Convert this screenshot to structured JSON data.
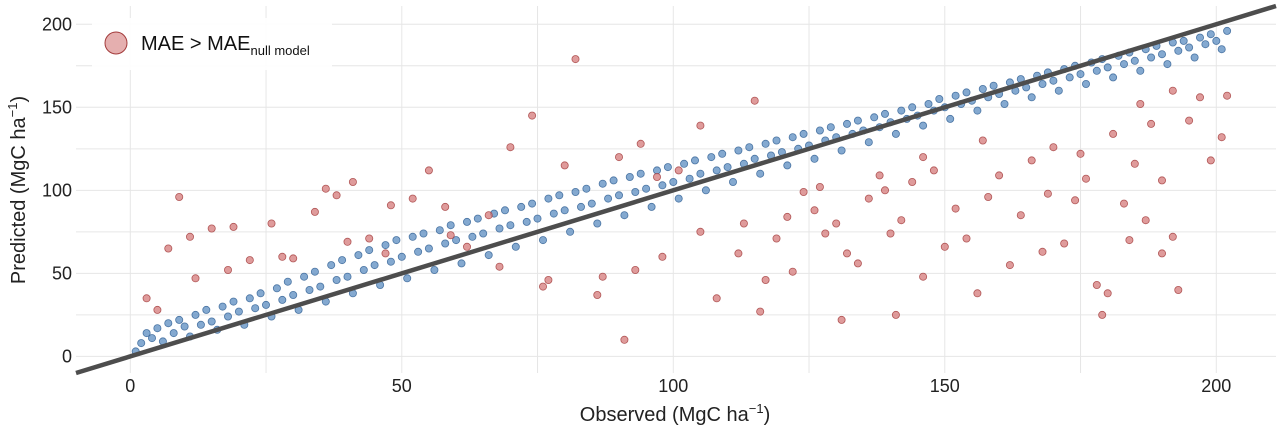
{
  "chart_data": {
    "type": "scatter",
    "title": "",
    "xlabel": "Observed (MgC ha",
    "xlabel_sup": "−1",
    "xlabel_end": ")",
    "ylabel": "Predicted (MgC ha",
    "ylabel_sup": "−1",
    "ylabel_end": ")",
    "xlim": [
      -10,
      211
    ],
    "ylim": [
      -10,
      211
    ],
    "x_ticks": [
      0,
      50,
      100,
      150,
      200
    ],
    "y_ticks": [
      0,
      50,
      100,
      150,
      200
    ],
    "grid": true,
    "legend": {
      "placement": "top-left",
      "label": "MAE > MAE",
      "label_sub": "null model"
    },
    "reference_line": {
      "slope": 1,
      "intercept": 0,
      "color": "#4d4d4d"
    },
    "series": [
      {
        "key": "within",
        "color": "#5b8cc0",
        "edge": "#2f5f93",
        "points": [
          [
            1,
            3
          ],
          [
            2,
            8
          ],
          [
            3,
            14
          ],
          [
            4,
            11
          ],
          [
            5,
            17
          ],
          [
            6,
            9
          ],
          [
            7,
            20
          ],
          [
            8,
            14
          ],
          [
            9,
            22
          ],
          [
            10,
            18
          ],
          [
            11,
            12
          ],
          [
            12,
            25
          ],
          [
            13,
            19
          ],
          [
            14,
            28
          ],
          [
            15,
            21
          ],
          [
            16,
            16
          ],
          [
            17,
            30
          ],
          [
            18,
            24
          ],
          [
            19,
            33
          ],
          [
            20,
            27
          ],
          [
            21,
            19
          ],
          [
            22,
            35
          ],
          [
            23,
            29
          ],
          [
            24,
            38
          ],
          [
            25,
            31
          ],
          [
            26,
            24
          ],
          [
            27,
            41
          ],
          [
            28,
            34
          ],
          [
            29,
            45
          ],
          [
            30,
            37
          ],
          [
            31,
            28
          ],
          [
            32,
            48
          ],
          [
            33,
            40
          ],
          [
            34,
            51
          ],
          [
            35,
            42
          ],
          [
            36,
            33
          ],
          [
            37,
            55
          ],
          [
            38,
            46
          ],
          [
            39,
            58
          ],
          [
            40,
            48
          ],
          [
            41,
            38
          ],
          [
            42,
            61
          ],
          [
            43,
            52
          ],
          [
            44,
            64
          ],
          [
            45,
            55
          ],
          [
            46,
            43
          ],
          [
            47,
            67
          ],
          [
            48,
            57
          ],
          [
            49,
            70
          ],
          [
            50,
            60
          ],
          [
            51,
            47
          ],
          [
            52,
            72
          ],
          [
            53,
            63
          ],
          [
            54,
            74
          ],
          [
            55,
            65
          ],
          [
            56,
            52
          ],
          [
            57,
            76
          ],
          [
            58,
            68
          ],
          [
            59,
            79
          ],
          [
            60,
            70
          ],
          [
            61,
            56
          ],
          [
            62,
            81
          ],
          [
            63,
            72
          ],
          [
            64,
            83
          ],
          [
            65,
            74
          ],
          [
            66,
            61
          ],
          [
            67,
            86
          ],
          [
            68,
            77
          ],
          [
            69,
            88
          ],
          [
            70,
            79
          ],
          [
            71,
            66
          ],
          [
            72,
            90
          ],
          [
            73,
            81
          ],
          [
            74,
            92
          ],
          [
            75,
            83
          ],
          [
            76,
            70
          ],
          [
            77,
            95
          ],
          [
            78,
            86
          ],
          [
            79,
            97
          ],
          [
            80,
            88
          ],
          [
            81,
            75
          ],
          [
            82,
            99
          ],
          [
            83,
            90
          ],
          [
            84,
            101
          ],
          [
            85,
            92
          ],
          [
            86,
            80
          ],
          [
            87,
            104
          ],
          [
            88,
            95
          ],
          [
            89,
            106
          ],
          [
            90,
            97
          ],
          [
            91,
            85
          ],
          [
            92,
            108
          ],
          [
            93,
            99
          ],
          [
            94,
            110
          ],
          [
            95,
            101
          ],
          [
            96,
            90
          ],
          [
            97,
            112
          ],
          [
            98,
            103
          ],
          [
            99,
            114
          ],
          [
            100,
            105
          ],
          [
            101,
            95
          ],
          [
            102,
            116
          ],
          [
            103,
            107
          ],
          [
            104,
            118
          ],
          [
            105,
            110
          ],
          [
            106,
            100
          ],
          [
            107,
            120
          ],
          [
            108,
            112
          ],
          [
            109,
            122
          ],
          [
            110,
            114
          ],
          [
            111,
            105
          ],
          [
            112,
            124
          ],
          [
            113,
            116
          ],
          [
            114,
            126
          ],
          [
            115,
            119
          ],
          [
            116,
            110
          ],
          [
            117,
            128
          ],
          [
            118,
            121
          ],
          [
            119,
            130
          ],
          [
            120,
            123
          ],
          [
            121,
            115
          ],
          [
            122,
            132
          ],
          [
            123,
            125
          ],
          [
            124,
            134
          ],
          [
            125,
            127
          ],
          [
            126,
            119
          ],
          [
            127,
            136
          ],
          [
            128,
            130
          ],
          [
            129,
            138
          ],
          [
            130,
            132
          ],
          [
            131,
            124
          ],
          [
            132,
            140
          ],
          [
            133,
            134
          ],
          [
            134,
            142
          ],
          [
            135,
            136
          ],
          [
            136,
            129
          ],
          [
            137,
            144
          ],
          [
            138,
            138
          ],
          [
            139,
            146
          ],
          [
            140,
            141
          ],
          [
            141,
            134
          ],
          [
            142,
            148
          ],
          [
            143,
            143
          ],
          [
            144,
            150
          ],
          [
            145,
            145
          ],
          [
            146,
            139
          ],
          [
            147,
            152
          ],
          [
            148,
            148
          ],
          [
            149,
            155
          ],
          [
            150,
            150
          ],
          [
            151,
            143
          ],
          [
            152,
            157
          ],
          [
            153,
            152
          ],
          [
            154,
            159
          ],
          [
            155,
            154
          ],
          [
            156,
            148
          ],
          [
            157,
            161
          ],
          [
            158,
            156
          ],
          [
            159,
            163
          ],
          [
            160,
            158
          ],
          [
            161,
            152
          ],
          [
            162,
            165
          ],
          [
            163,
            160
          ],
          [
            164,
            167
          ],
          [
            165,
            162
          ],
          [
            166,
            156
          ],
          [
            167,
            169
          ],
          [
            168,
            164
          ],
          [
            169,
            171
          ],
          [
            170,
            166
          ],
          [
            171,
            160
          ],
          [
            172,
            173
          ],
          [
            173,
            168
          ],
          [
            174,
            175
          ],
          [
            175,
            170
          ],
          [
            176,
            164
          ],
          [
            177,
            177
          ],
          [
            178,
            172
          ],
          [
            179,
            179
          ],
          [
            180,
            174
          ],
          [
            181,
            168
          ],
          [
            182,
            181
          ],
          [
            183,
            176
          ],
          [
            184,
            183
          ],
          [
            185,
            178
          ],
          [
            186,
            172
          ],
          [
            187,
            185
          ],
          [
            188,
            180
          ],
          [
            189,
            187
          ],
          [
            190,
            182
          ],
          [
            191,
            176
          ],
          [
            192,
            189
          ],
          [
            193,
            184
          ],
          [
            194,
            190
          ],
          [
            195,
            186
          ],
          [
            196,
            180
          ],
          [
            197,
            192
          ],
          [
            198,
            188
          ],
          [
            199,
            194
          ],
          [
            200,
            190
          ],
          [
            201,
            185
          ],
          [
            202,
            196
          ]
        ]
      },
      {
        "key": "exceeds",
        "color": "#d47a7a",
        "edge": "#a33b3b",
        "points": [
          [
            3,
            35
          ],
          [
            7,
            65
          ],
          [
            9,
            96
          ],
          [
            11,
            72
          ],
          [
            15,
            77
          ],
          [
            18,
            52
          ],
          [
            22,
            58
          ],
          [
            26,
            80
          ],
          [
            30,
            59
          ],
          [
            34,
            87
          ],
          [
            38,
            97
          ],
          [
            41,
            105
          ],
          [
            44,
            71
          ],
          [
            47,
            62
          ],
          [
            52,
            95
          ],
          [
            55,
            112
          ],
          [
            58,
            90
          ],
          [
            62,
            66
          ],
          [
            66,
            85
          ],
          [
            70,
            126
          ],
          [
            74,
            145
          ],
          [
            77,
            46
          ],
          [
            80,
            115
          ],
          [
            82,
            179
          ],
          [
            86,
            37
          ],
          [
            90,
            120
          ],
          [
            91,
            10
          ],
          [
            94,
            128
          ],
          [
            97,
            108
          ],
          [
            101,
            112
          ],
          [
            105,
            139
          ],
          [
            108,
            35
          ],
          [
            112,
            62
          ],
          [
            115,
            154
          ],
          [
            117,
            46
          ],
          [
            119,
            71
          ],
          [
            122,
            51
          ],
          [
            124,
            99
          ],
          [
            126,
            88
          ],
          [
            128,
            74
          ],
          [
            130,
            80
          ],
          [
            132,
            62
          ],
          [
            134,
            56
          ],
          [
            136,
            95
          ],
          [
            138,
            109
          ],
          [
            140,
            74
          ],
          [
            142,
            82
          ],
          [
            144,
            105
          ],
          [
            146,
            48
          ],
          [
            148,
            112
          ],
          [
            150,
            66
          ],
          [
            152,
            89
          ],
          [
            154,
            71
          ],
          [
            156,
            38
          ],
          [
            158,
            96
          ],
          [
            160,
            109
          ],
          [
            162,
            55
          ],
          [
            164,
            85
          ],
          [
            166,
            118
          ],
          [
            168,
            63
          ],
          [
            170,
            126
          ],
          [
            172,
            68
          ],
          [
            174,
            94
          ],
          [
            176,
            107
          ],
          [
            178,
            43
          ],
          [
            180,
            38
          ],
          [
            181,
            134
          ],
          [
            183,
            92
          ],
          [
            185,
            116
          ],
          [
            187,
            82
          ],
          [
            188,
            140
          ],
          [
            190,
            106
          ],
          [
            192,
            72
          ],
          [
            193,
            40
          ],
          [
            195,
            142
          ],
          [
            197,
            156
          ],
          [
            199,
            118
          ],
          [
            201,
            132
          ],
          [
            202,
            157
          ],
          [
            192,
            160
          ],
          [
            186,
            152
          ],
          [
            175,
            122
          ],
          [
            169,
            98
          ],
          [
            157,
            130
          ],
          [
            146,
            120
          ],
          [
            139,
            100
          ],
          [
            127,
            102
          ],
          [
            121,
            84
          ],
          [
            113,
            80
          ],
          [
            105,
            75
          ],
          [
            98,
            60
          ],
          [
            93,
            52
          ],
          [
            87,
            48
          ],
          [
            76,
            42
          ],
          [
            68,
            54
          ],
          [
            59,
            73
          ],
          [
            48,
            91
          ],
          [
            40,
            69
          ],
          [
            36,
            101
          ],
          [
            28,
            60
          ],
          [
            19,
            78
          ],
          [
            12,
            47
          ],
          [
            5,
            28
          ],
          [
            131,
            22
          ],
          [
            116,
            27
          ],
          [
            141,
            25
          ],
          [
            179,
            25
          ],
          [
            190,
            62
          ],
          [
            184,
            70
          ]
        ]
      }
    ]
  }
}
